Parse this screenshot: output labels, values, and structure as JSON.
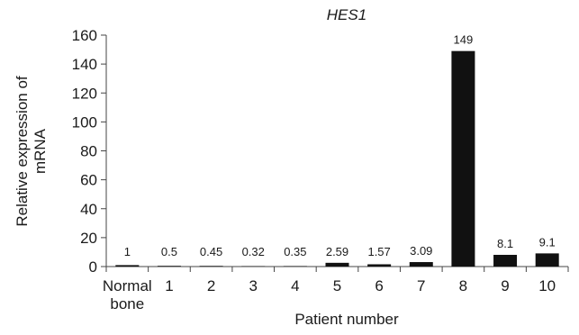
{
  "chart_data": {
    "type": "bar",
    "title": "HES1",
    "ylabel": "Relative expression of mRNA",
    "ylabel_lines": [
      "Relative expression of",
      "mRNA"
    ],
    "xlabel": "Patient number",
    "ylim": [
      0,
      160
    ],
    "yticks": [
      0,
      20,
      40,
      60,
      80,
      100,
      120,
      140,
      160
    ],
    "categories": [
      "Normal bone",
      "1",
      "2",
      "3",
      "4",
      "5",
      "6",
      "7",
      "8",
      "9",
      "10"
    ],
    "category_lines": [
      [
        "Normal",
        "bone"
      ],
      [
        "1"
      ],
      [
        "2"
      ],
      [
        "3"
      ],
      [
        "4"
      ],
      [
        "5"
      ],
      [
        "6"
      ],
      [
        "7"
      ],
      [
        "8"
      ],
      [
        "9"
      ],
      [
        "10"
      ]
    ],
    "values": [
      1,
      0.5,
      0.45,
      0.32,
      0.35,
      2.59,
      1.57,
      3.09,
      149,
      8.1,
      9.1
    ],
    "value_labels": [
      "1",
      "0.5",
      "0.45",
      "0.32",
      "0.35",
      "2.59",
      "1.57",
      "3.09",
      "149",
      "8.1",
      "9.1"
    ],
    "bar_color": "#111111",
    "grid": false,
    "legend": "none"
  }
}
